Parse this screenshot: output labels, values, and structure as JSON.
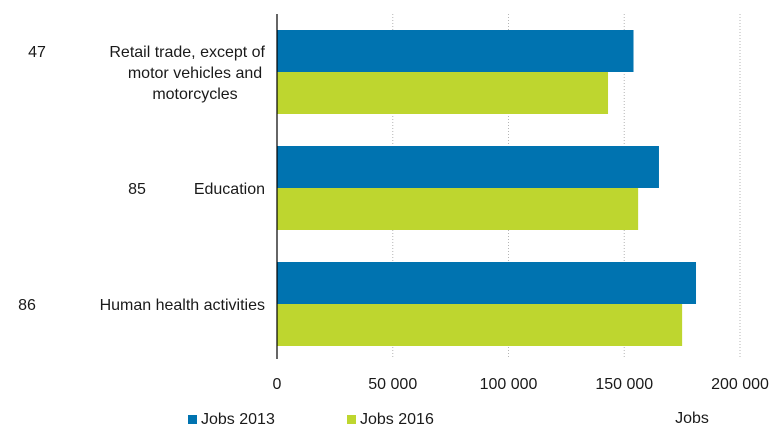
{
  "chart_data": {
    "type": "bar",
    "orientation": "horizontal",
    "categories": [
      {
        "code": "47",
        "lines": [
          "Retail trade, except of",
          "motor vehicles and",
          "motorcycles"
        ]
      },
      {
        "code": "85",
        "lines": [
          "Education"
        ]
      },
      {
        "code": "86",
        "lines": [
          "Human health activities"
        ]
      }
    ],
    "series": [
      {
        "name": "Jobs 2013",
        "color": "#0073b0",
        "values": [
          154000,
          165000,
          181000
        ]
      },
      {
        "name": "Jobs 2016",
        "color": "#bed62f",
        "values": [
          143000,
          156000,
          175000
        ]
      }
    ],
    "xlim": [
      0,
      200000
    ],
    "xticks": [
      0,
      50000,
      100000,
      150000,
      200000
    ],
    "xtick_labels": [
      "0",
      "50 000",
      "100 000",
      "150 000",
      "200 000"
    ],
    "xlabel": "Jobs",
    "grid": "vertical-dotted",
    "legend_position": "bottom-left"
  }
}
